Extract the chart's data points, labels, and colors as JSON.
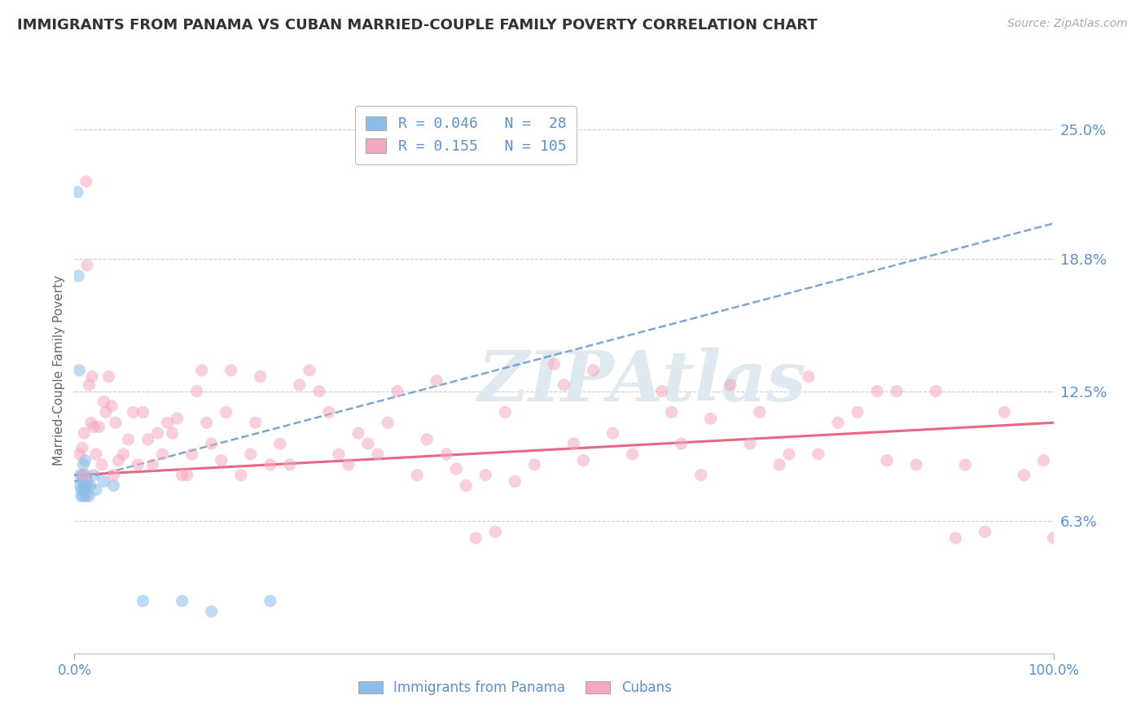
{
  "title": "IMMIGRANTS FROM PANAMA VS CUBAN MARRIED-COUPLE FAMILY POVERTY CORRELATION CHART",
  "source": "Source: ZipAtlas.com",
  "ylabel": "Married-Couple Family Poverty",
  "ytick_values": [
    6.3,
    12.5,
    18.8,
    25.0
  ],
  "xlim": [
    0.0,
    100.0
  ],
  "ylim": [
    0.0,
    27.0
  ],
  "y_bottom_line": 0.0,
  "r_panama": 0.046,
  "n_panama": 28,
  "r_cuban": 0.155,
  "n_cuban": 105,
  "color_panama": "#8BBDE8",
  "color_cuban": "#F4A8BC",
  "color_trendline_panama": "#6699CC",
  "color_trendline_cuban": "#E8607A",
  "color_axis_labels": "#5B8FD4",
  "watermark": "ZIPAtlas",
  "panama_trendline": [
    [
      0,
      8.2
    ],
    [
      100,
      20.5
    ]
  ],
  "cuban_trendline": [
    [
      0,
      8.5
    ],
    [
      100,
      11.0
    ]
  ],
  "panama_scatter": [
    [
      0.3,
      22.0
    ],
    [
      0.4,
      18.0
    ],
    [
      0.5,
      13.5
    ],
    [
      0.6,
      8.5
    ],
    [
      0.6,
      8.0
    ],
    [
      0.7,
      7.8
    ],
    [
      0.7,
      7.5
    ],
    [
      0.8,
      8.2
    ],
    [
      0.8,
      8.5
    ],
    [
      0.9,
      9.0
    ],
    [
      0.9,
      7.5
    ],
    [
      1.0,
      8.0
    ],
    [
      1.0,
      7.8
    ],
    [
      1.1,
      8.5
    ],
    [
      1.1,
      9.2
    ],
    [
      1.2,
      8.0
    ],
    [
      1.2,
      7.5
    ],
    [
      1.3,
      8.2
    ],
    [
      1.5,
      7.5
    ],
    [
      1.6,
      8.0
    ],
    [
      2.0,
      8.5
    ],
    [
      2.2,
      7.8
    ],
    [
      3.0,
      8.2
    ],
    [
      4.0,
      8.0
    ],
    [
      7.0,
      2.5
    ],
    [
      11.0,
      2.5
    ],
    [
      14.0,
      2.0
    ],
    [
      20.0,
      2.5
    ]
  ],
  "cuban_scatter": [
    [
      0.5,
      9.5
    ],
    [
      0.8,
      9.8
    ],
    [
      1.0,
      10.5
    ],
    [
      1.0,
      8.5
    ],
    [
      1.2,
      22.5
    ],
    [
      1.3,
      18.5
    ],
    [
      1.5,
      12.8
    ],
    [
      1.7,
      11.0
    ],
    [
      1.8,
      13.2
    ],
    [
      2.0,
      10.8
    ],
    [
      2.2,
      9.5
    ],
    [
      2.5,
      10.8
    ],
    [
      2.8,
      9.0
    ],
    [
      3.0,
      12.0
    ],
    [
      3.2,
      11.5
    ],
    [
      3.5,
      13.2
    ],
    [
      3.8,
      11.8
    ],
    [
      4.0,
      8.5
    ],
    [
      4.2,
      11.0
    ],
    [
      4.5,
      9.2
    ],
    [
      5.0,
      9.5
    ],
    [
      5.5,
      10.2
    ],
    [
      6.0,
      11.5
    ],
    [
      6.5,
      9.0
    ],
    [
      7.0,
      11.5
    ],
    [
      7.5,
      10.2
    ],
    [
      8.0,
      9.0
    ],
    [
      8.5,
      10.5
    ],
    [
      9.0,
      9.5
    ],
    [
      9.5,
      11.0
    ],
    [
      10.0,
      10.5
    ],
    [
      10.5,
      11.2
    ],
    [
      11.0,
      8.5
    ],
    [
      11.5,
      8.5
    ],
    [
      12.0,
      9.5
    ],
    [
      12.5,
      12.5
    ],
    [
      13.0,
      13.5
    ],
    [
      13.5,
      11.0
    ],
    [
      14.0,
      10.0
    ],
    [
      15.0,
      9.2
    ],
    [
      15.5,
      11.5
    ],
    [
      16.0,
      13.5
    ],
    [
      17.0,
      8.5
    ],
    [
      18.0,
      9.5
    ],
    [
      18.5,
      11.0
    ],
    [
      19.0,
      13.2
    ],
    [
      20.0,
      9.0
    ],
    [
      21.0,
      10.0
    ],
    [
      22.0,
      9.0
    ],
    [
      23.0,
      12.8
    ],
    [
      24.0,
      13.5
    ],
    [
      25.0,
      12.5
    ],
    [
      26.0,
      11.5
    ],
    [
      27.0,
      9.5
    ],
    [
      28.0,
      9.0
    ],
    [
      29.0,
      10.5
    ],
    [
      30.0,
      10.0
    ],
    [
      31.0,
      9.5
    ],
    [
      32.0,
      11.0
    ],
    [
      33.0,
      12.5
    ],
    [
      35.0,
      8.5
    ],
    [
      36.0,
      10.2
    ],
    [
      37.0,
      13.0
    ],
    [
      38.0,
      9.5
    ],
    [
      39.0,
      8.8
    ],
    [
      40.0,
      8.0
    ],
    [
      41.0,
      5.5
    ],
    [
      42.0,
      8.5
    ],
    [
      43.0,
      5.8
    ],
    [
      44.0,
      11.5
    ],
    [
      45.0,
      8.2
    ],
    [
      47.0,
      9.0
    ],
    [
      49.0,
      13.8
    ],
    [
      50.0,
      12.8
    ],
    [
      51.0,
      10.0
    ],
    [
      52.0,
      9.2
    ],
    [
      53.0,
      13.5
    ],
    [
      55.0,
      10.5
    ],
    [
      57.0,
      9.5
    ],
    [
      60.0,
      12.5
    ],
    [
      61.0,
      11.5
    ],
    [
      62.0,
      10.0
    ],
    [
      64.0,
      8.5
    ],
    [
      65.0,
      11.2
    ],
    [
      67.0,
      12.8
    ],
    [
      69.0,
      10.0
    ],
    [
      70.0,
      11.5
    ],
    [
      72.0,
      9.0
    ],
    [
      73.0,
      9.5
    ],
    [
      75.0,
      13.2
    ],
    [
      76.0,
      9.5
    ],
    [
      78.0,
      11.0
    ],
    [
      80.0,
      11.5
    ],
    [
      82.0,
      12.5
    ],
    [
      83.0,
      9.2
    ],
    [
      84.0,
      12.5
    ],
    [
      86.0,
      9.0
    ],
    [
      88.0,
      12.5
    ],
    [
      90.0,
      5.5
    ],
    [
      91.0,
      9.0
    ],
    [
      93.0,
      5.8
    ],
    [
      95.0,
      11.5
    ],
    [
      97.0,
      8.5
    ],
    [
      99.0,
      9.2
    ],
    [
      100.0,
      5.5
    ]
  ]
}
